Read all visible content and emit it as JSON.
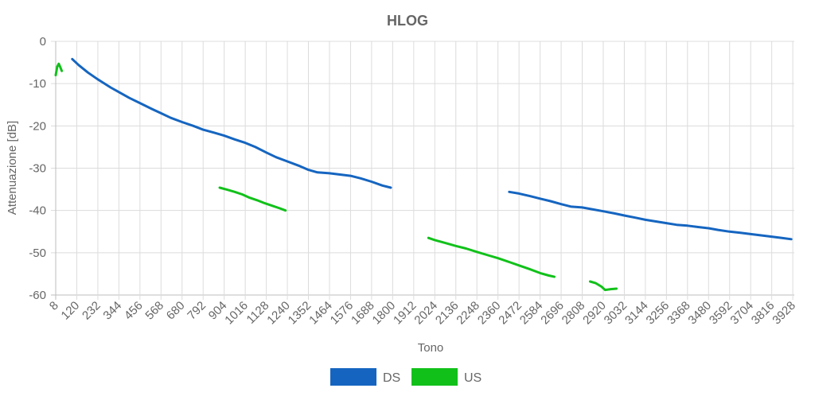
{
  "chart_data": {
    "type": "line",
    "title": "HLOG",
    "xlabel": "Tono",
    "ylabel": "Attenuazione [dB]",
    "xlim": [
      8,
      3936
    ],
    "ylim": [
      -60,
      0
    ],
    "x_ticks": [
      "8",
      "120",
      "232",
      "344",
      "456",
      "568",
      "680",
      "792",
      "904",
      "1016",
      "1128",
      "1240",
      "1352",
      "1464",
      "1576",
      "1688",
      "1800",
      "1912",
      "2024",
      "2136",
      "2248",
      "2360",
      "2472",
      "2584",
      "2696",
      "2808",
      "2920",
      "3032",
      "3144",
      "3256",
      "3368",
      "3480",
      "3592",
      "3704",
      "3816",
      "3928"
    ],
    "y_ticks": [
      "0",
      "-10",
      "-20",
      "-30",
      "-40",
      "-50",
      "-60"
    ],
    "grid": true,
    "legend_position": "bottom",
    "series": [
      {
        "name": "DS",
        "color": "#1565c0",
        "segments": [
          [
            [
              96,
              -4.2
            ],
            [
              130,
              -5.6
            ],
            [
              180,
              -7.4
            ],
            [
              232,
              -9.0
            ],
            [
              300,
              -10.9
            ],
            [
              344,
              -12.0
            ],
            [
              400,
              -13.4
            ],
            [
              456,
              -14.6
            ],
            [
              520,
              -16.0
            ],
            [
              568,
              -17.0
            ],
            [
              620,
              -18.1
            ],
            [
              680,
              -19.1
            ],
            [
              740,
              -20.0
            ],
            [
              792,
              -20.9
            ],
            [
              850,
              -21.6
            ],
            [
              904,
              -22.3
            ],
            [
              960,
              -23.2
            ],
            [
              1016,
              -24.0
            ],
            [
              1070,
              -25.0
            ],
            [
              1128,
              -26.3
            ],
            [
              1180,
              -27.4
            ],
            [
              1240,
              -28.4
            ],
            [
              1300,
              -29.4
            ],
            [
              1352,
              -30.4
            ],
            [
              1400,
              -31.0
            ],
            [
              1464,
              -31.2
            ],
            [
              1520,
              -31.5
            ],
            [
              1576,
              -31.8
            ],
            [
              1630,
              -32.4
            ],
            [
              1688,
              -33.2
            ],
            [
              1745,
              -34.1
            ],
            [
              1790,
              -34.6
            ]
          ],
          [
            [
              2420,
              -35.6
            ],
            [
              2472,
              -36.0
            ],
            [
              2530,
              -36.6
            ],
            [
              2584,
              -37.2
            ],
            [
              2640,
              -37.8
            ],
            [
              2696,
              -38.5
            ],
            [
              2750,
              -39.1
            ],
            [
              2808,
              -39.3
            ],
            [
              2860,
              -39.7
            ],
            [
              2920,
              -40.2
            ],
            [
              2980,
              -40.7
            ],
            [
              3032,
              -41.2
            ],
            [
              3090,
              -41.7
            ],
            [
              3144,
              -42.2
            ],
            [
              3200,
              -42.6
            ],
            [
              3256,
              -43.0
            ],
            [
              3310,
              -43.4
            ],
            [
              3368,
              -43.6
            ],
            [
              3420,
              -43.9
            ],
            [
              3480,
              -44.2
            ],
            [
              3530,
              -44.6
            ],
            [
              3592,
              -45.0
            ],
            [
              3650,
              -45.3
            ],
            [
              3704,
              -45.6
            ],
            [
              3760,
              -45.9
            ],
            [
              3816,
              -46.2
            ],
            [
              3870,
              -46.5
            ],
            [
              3920,
              -46.8
            ]
          ]
        ]
      },
      {
        "name": "US",
        "color": "#11c11a",
        "segments": [
          [
            [
              8,
              -8.0
            ],
            [
              16,
              -6.0
            ],
            [
              24,
              -5.3
            ],
            [
              32,
              -6.1
            ],
            [
              40,
              -7.0
            ]
          ],
          [
            [
              880,
              -34.6
            ],
            [
              920,
              -35.1
            ],
            [
              960,
              -35.6
            ],
            [
              1000,
              -36.2
            ],
            [
              1040,
              -37.0
            ],
            [
              1080,
              -37.6
            ],
            [
              1120,
              -38.3
            ],
            [
              1160,
              -38.9
            ],
            [
              1200,
              -39.5
            ],
            [
              1230,
              -40.0
            ]
          ],
          [
            [
              1990,
              -46.5
            ],
            [
              2024,
              -47.0
            ],
            [
              2080,
              -47.7
            ],
            [
              2136,
              -48.4
            ],
            [
              2190,
              -49.0
            ],
            [
              2248,
              -49.8
            ],
            [
              2300,
              -50.5
            ],
            [
              2360,
              -51.3
            ],
            [
              2420,
              -52.2
            ],
            [
              2472,
              -53.0
            ],
            [
              2530,
              -53.9
            ],
            [
              2584,
              -54.8
            ],
            [
              2630,
              -55.4
            ],
            [
              2660,
              -55.7
            ]
          ],
          [
            [
              2850,
              -56.8
            ],
            [
              2880,
              -57.2
            ],
            [
              2910,
              -58.0
            ],
            [
              2930,
              -58.8
            ],
            [
              2960,
              -58.6
            ],
            [
              2990,
              -58.5
            ]
          ]
        ]
      }
    ]
  }
}
